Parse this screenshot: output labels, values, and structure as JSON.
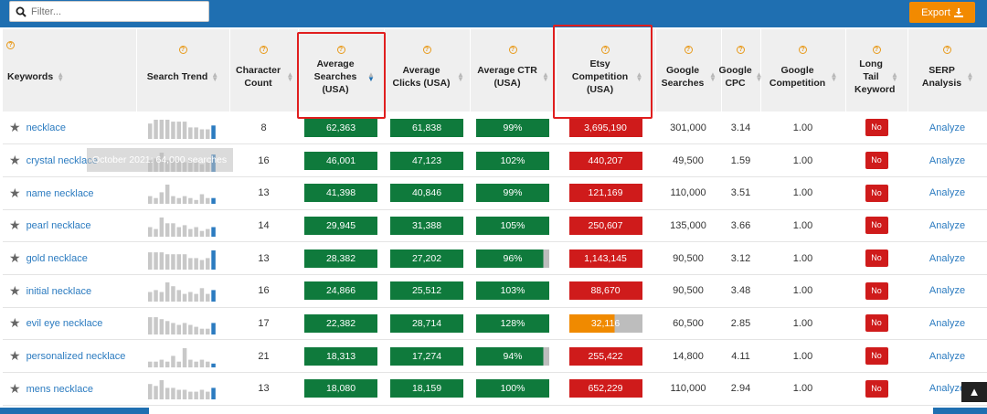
{
  "filter": {
    "placeholder": "Filter..."
  },
  "export": {
    "label": "Export"
  },
  "columns": [
    {
      "label": "Keywords"
    },
    {
      "label": "Search Trend"
    },
    {
      "label": "Character Count"
    },
    {
      "label": "Average Searches (USA)"
    },
    {
      "label": "Average Clicks (USA)"
    },
    {
      "label": "Average CTR (USA)"
    },
    {
      "label": "Etsy Competition (USA)"
    },
    {
      "label": "Google Searches"
    },
    {
      "label": "Google CPC"
    },
    {
      "label": "Google Competition"
    },
    {
      "label": "Long Tail Keyword"
    },
    {
      "label": "SERP Analysis"
    }
  ],
  "help_glyph": "?",
  "rows": [
    {
      "keyword": "necklace",
      "chars": "8",
      "avg_searches": "62,363",
      "avg_clicks": "61,838",
      "ctr": "99%",
      "etsy": "3,695,190",
      "etsy_color": "#cf1b1b",
      "etsy_level": 1.0,
      "ctr_level": 1.0,
      "g_searches": "301,000",
      "cpc": "3.14",
      "g_comp": "1.00",
      "long_tail": "No",
      "serp": "Analyze",
      "trend": [
        8,
        10,
        10,
        10,
        9,
        9,
        9,
        6,
        6,
        5,
        5,
        7
      ]
    },
    {
      "keyword": "crystal necklace",
      "chars": "16",
      "avg_searches": "46,001",
      "avg_clicks": "47,123",
      "ctr": "102%",
      "etsy": "440,207",
      "etsy_color": "#cf1b1b",
      "etsy_level": 1.0,
      "ctr_level": 1.0,
      "g_searches": "49,500",
      "cpc": "1.59",
      "g_comp": "1.00",
      "long_tail": "No",
      "serp": "Analyze",
      "trend": [
        6,
        7,
        10,
        6,
        7,
        6,
        5,
        6,
        5,
        4,
        5,
        9
      ]
    },
    {
      "keyword": "name necklace",
      "chars": "13",
      "avg_searches": "41,398",
      "avg_clicks": "40,846",
      "ctr": "99%",
      "etsy": "121,169",
      "etsy_color": "#cf1b1b",
      "etsy_level": 1.0,
      "ctr_level": 1.0,
      "g_searches": "110,000",
      "cpc": "3.51",
      "g_comp": "1.00",
      "long_tail": "No",
      "serp": "Analyze",
      "trend": [
        4,
        3,
        6,
        10,
        4,
        3,
        4,
        3,
        2,
        5,
        3,
        3
      ]
    },
    {
      "keyword": "pearl necklace",
      "chars": "14",
      "avg_searches": "29,945",
      "avg_clicks": "31,388",
      "ctr": "105%",
      "etsy": "250,607",
      "etsy_color": "#cf1b1b",
      "etsy_level": 1.0,
      "ctr_level": 1.0,
      "g_searches": "135,000",
      "cpc": "3.66",
      "g_comp": "1.00",
      "long_tail": "No",
      "serp": "Analyze",
      "trend": [
        5,
        4,
        10,
        7,
        7,
        5,
        6,
        4,
        5,
        3,
        4,
        5
      ]
    },
    {
      "keyword": "gold necklace",
      "chars": "13",
      "avg_searches": "28,382",
      "avg_clicks": "27,202",
      "ctr": "96%",
      "etsy": "1,143,145",
      "etsy_color": "#cf1b1b",
      "etsy_level": 1.0,
      "ctr_level": 0.92,
      "g_searches": "90,500",
      "cpc": "3.12",
      "g_comp": "1.00",
      "long_tail": "No",
      "serp": "Analyze",
      "trend": [
        9,
        9,
        9,
        8,
        8,
        8,
        8,
        6,
        6,
        5,
        6,
        10
      ]
    },
    {
      "keyword": "initial necklace",
      "chars": "16",
      "avg_searches": "24,866",
      "avg_clicks": "25,512",
      "ctr": "103%",
      "etsy": "88,670",
      "etsy_color": "#cf1b1b",
      "etsy_level": 1.0,
      "ctr_level": 1.0,
      "g_searches": "90,500",
      "cpc": "3.48",
      "g_comp": "1.00",
      "long_tail": "No",
      "serp": "Analyze",
      "trend": [
        5,
        6,
        5,
        10,
        8,
        6,
        4,
        5,
        4,
        7,
        4,
        6
      ]
    },
    {
      "keyword": "evil eye necklace",
      "chars": "17",
      "avg_searches": "22,382",
      "avg_clicks": "28,714",
      "ctr": "128%",
      "etsy": "32,116",
      "etsy_color": "#f08a00",
      "etsy_level": 0.62,
      "ctr_level": 1.0,
      "g_searches": "60,500",
      "cpc": "2.85",
      "g_comp": "1.00",
      "long_tail": "No",
      "serp": "Analyze",
      "trend": [
        9,
        9,
        8,
        7,
        6,
        5,
        6,
        5,
        4,
        3,
        3,
        6
      ]
    },
    {
      "keyword": "personalized necklace",
      "chars": "21",
      "avg_searches": "18,313",
      "avg_clicks": "17,274",
      "ctr": "94%",
      "etsy": "255,422",
      "etsy_color": "#cf1b1b",
      "etsy_level": 1.0,
      "ctr_level": 0.92,
      "g_searches": "14,800",
      "cpc": "4.11",
      "g_comp": "1.00",
      "long_tail": "No",
      "serp": "Analyze",
      "trend": [
        3,
        3,
        4,
        3,
        6,
        3,
        10,
        4,
        3,
        4,
        3,
        2
      ]
    },
    {
      "keyword": "mens necklace",
      "chars": "13",
      "avg_searches": "18,080",
      "avg_clicks": "18,159",
      "ctr": "100%",
      "etsy": "652,229",
      "etsy_color": "#cf1b1b",
      "etsy_level": 1.0,
      "ctr_level": 1.0,
      "g_searches": "110,000",
      "cpc": "2.94",
      "g_comp": "1.00",
      "long_tail": "No",
      "serp": "Analyze",
      "trend": [
        8,
        7,
        10,
        6,
        6,
        5,
        5,
        4,
        4,
        5,
        4,
        6
      ]
    }
  ],
  "tooltip": {
    "text": "October 2021: 64,000 searches"
  },
  "colors": {
    "trend_bar": "#c8c8c8",
    "trend_last": "#2b7bc0",
    "highlight": "#e01e1e",
    "header_blue": "#1f6fb1"
  }
}
